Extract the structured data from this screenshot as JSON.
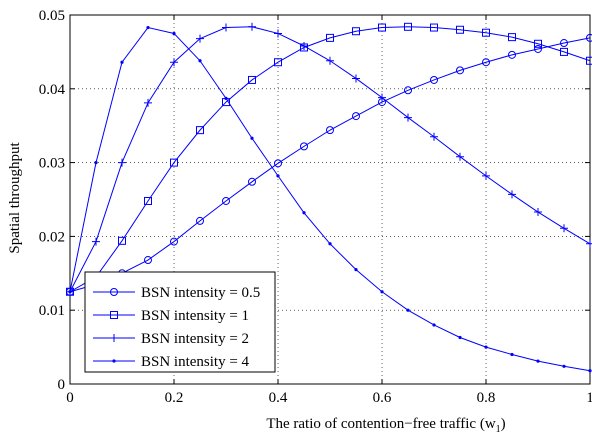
{
  "chart_data": {
    "type": "line",
    "xlabel": "The ratio of contention−free traffic (w",
    "xlabel_subscript": "1",
    "xlabel_suffix": ")",
    "ylabel": "Spatial throughput",
    "xlim": [
      0,
      1
    ],
    "ylim": [
      0,
      0.05
    ],
    "xticks": [
      0,
      0.2,
      0.4,
      0.6,
      0.8,
      1
    ],
    "xtick_labels": [
      "0",
      "0.2",
      "0.4",
      "0.6",
      "0.8",
      "1"
    ],
    "yticks": [
      0,
      0.01,
      0.02,
      0.03,
      0.04,
      0.05
    ],
    "ytick_labels": [
      "0",
      "0.01",
      "0.02",
      "0.03",
      "0.04",
      "0.05"
    ],
    "grid": true,
    "legend_position": "bottom-left",
    "line_color": "#0000ff",
    "x": [
      0,
      0.05,
      0.1,
      0.15,
      0.2,
      0.25,
      0.3,
      0.35,
      0.4,
      0.45,
      0.5,
      0.55,
      0.6,
      0.65,
      0.7,
      0.75,
      0.8,
      0.85,
      0.9,
      0.95,
      1
    ],
    "series": [
      {
        "name": "BSN intensity = 0.5",
        "marker": "circle",
        "values": [
          0.0125,
          0.0135,
          0.015,
          0.0168,
          0.0193,
          0.0221,
          0.0248,
          0.0274,
          0.0299,
          0.0322,
          0.0344,
          0.0363,
          0.0382,
          0.0398,
          0.0412,
          0.0425,
          0.0436,
          0.0446,
          0.0454,
          0.0462,
          0.0469
        ]
      },
      {
        "name": "BSN intensity = 1",
        "marker": "square",
        "values": [
          0.0125,
          0.0145,
          0.0194,
          0.0248,
          0.03,
          0.0344,
          0.0382,
          0.0412,
          0.0436,
          0.0456,
          0.0469,
          0.0478,
          0.0483,
          0.0484,
          0.0483,
          0.048,
          0.0476,
          0.047,
          0.0461,
          0.045,
          0.0438
        ]
      },
      {
        "name": "BSN intensity = 2",
        "marker": "plus",
        "values": [
          0.0125,
          0.0193,
          0.03,
          0.0381,
          0.0436,
          0.0468,
          0.0483,
          0.0484,
          0.0475,
          0.0458,
          0.0438,
          0.0414,
          0.0388,
          0.0361,
          0.0335,
          0.0308,
          0.0282,
          0.0257,
          0.0233,
          0.0211,
          0.019
        ]
      },
      {
        "name": "BSN intensity = 4",
        "marker": "dot",
        "values": [
          0.0125,
          0.03,
          0.0436,
          0.0483,
          0.0475,
          0.0438,
          0.0387,
          0.0333,
          0.0282,
          0.0232,
          0.019,
          0.0155,
          0.0125,
          0.01,
          0.008,
          0.0063,
          0.005,
          0.004,
          0.0031,
          0.0024,
          0.0018
        ]
      }
    ]
  }
}
